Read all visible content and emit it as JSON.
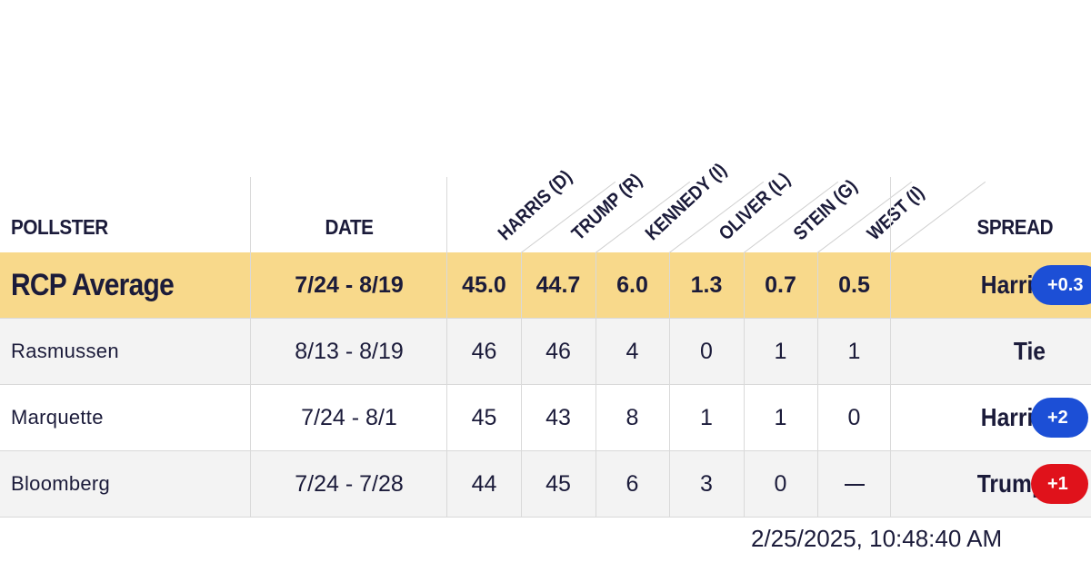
{
  "table": {
    "headers": {
      "pollster": "POLLSTER",
      "date": "DATE",
      "spread": "SPREAD",
      "candidates": [
        "HARRIS (D)",
        "TRUMP (R)",
        "KENNEDY (I)",
        "OLIVER (L)",
        "STEIN (G)",
        "WEST (I)"
      ]
    },
    "average": {
      "pollster": "RCP Average",
      "date": "7/24 - 8/19",
      "values": [
        "45.0",
        "44.7",
        "6.0",
        "1.3",
        "0.7",
        "0.5"
      ],
      "spread_name": "Harris",
      "spread_value": "+0.3"
    },
    "rows": [
      {
        "pollster": "Rasmussen",
        "date": "8/13 - 8/19",
        "values": [
          "46",
          "46",
          "4",
          "0",
          "1",
          "1"
        ],
        "spread_name": "Tie",
        "spread_value": ""
      },
      {
        "pollster": "Marquette",
        "date": "7/24 - 8/1",
        "values": [
          "45",
          "43",
          "8",
          "1",
          "1",
          "0"
        ],
        "spread_name": "Harris",
        "spread_value": "+2"
      },
      {
        "pollster": "Bloomberg",
        "date": "7/24 - 7/28",
        "values": [
          "44",
          "45",
          "6",
          "3",
          "0",
          "—"
        ],
        "spread_name": "Trump",
        "spread_value": "+1"
      }
    ]
  },
  "timestamp": "2/25/2025, 10:48:40 AM",
  "colors": {
    "average_row_bg": "#f8d98b",
    "alt_row_bg": "#f3f3f3",
    "text": "#1b1b3a",
    "harris_pill": "#1c4fd6",
    "trump_pill": "#e0121b"
  }
}
